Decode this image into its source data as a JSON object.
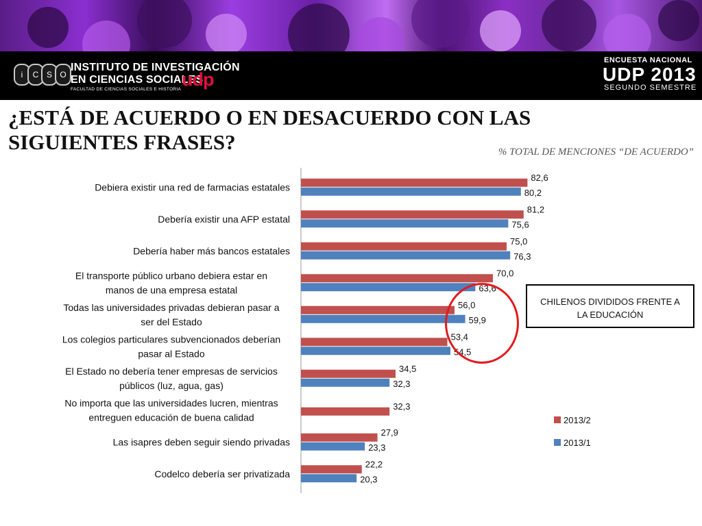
{
  "header": {
    "institute_line1": "INSTITUTO DE INVESTIGACIÓN",
    "institute_line2": "EN CIENCIAS SOCIALES",
    "institute_brand": "udp",
    "faculty": "FACULTAD DE CIENCIAS SOCIALES E HISTORIA",
    "logo_letters": [
      "i",
      "C",
      "S",
      "O"
    ],
    "survey_line1": "ENCUESTA NACIONAL",
    "survey_line2": "UDP 2013",
    "survey_line3": "SEGUNDO SEMESTRE"
  },
  "colors": {
    "series_2013_2": "#c0504d",
    "series_2013_1": "#4f81bd",
    "highlight": "#e3191b"
  },
  "callout": "CHILENOS DIVIDIDOS FRENTE A LA EDUCACIÓN",
  "chart_data": {
    "type": "bar",
    "orientation": "horizontal",
    "title": "¿ESTÁ DE ACUERDO O EN DESACUERDO CON LAS SIGUIENTES FRASES?",
    "subtitle": "% TOTAL DE MENCIONES  “DE ACUERDO”",
    "categories": [
      [
        "Debiera existir una red de farmacias estatales"
      ],
      [
        "Debería existir una AFP estatal"
      ],
      [
        "Debería haber más bancos estatales"
      ],
      [
        "El transporte público urbano debiera estar en",
        "manos de una empresa estatal"
      ],
      [
        "Todas las universidades privadas debieran pasar a",
        "ser del Estado"
      ],
      [
        "Los colegios particulares subvencionados deberían",
        "pasar al Estado"
      ],
      [
        "El Estado no debería tener empresas de servicios",
        "públicos (luz, agua, gas)"
      ],
      [
        "No importa que las universidades lucren, mientras",
        "entreguen educación de buena calidad"
      ],
      [
        "Las isapres deben seguir siendo privadas"
      ],
      [
        "Codelco debería ser privatizada"
      ]
    ],
    "series": [
      {
        "name": "2013/2",
        "values": [
          82.6,
          81.2,
          75.0,
          70.0,
          56.0,
          53.4,
          34.5,
          32.3,
          27.9,
          22.2
        ],
        "labels": [
          "82,6",
          "81,2",
          "75,0",
          "70,0",
          "56,0",
          "53,4",
          "34,5",
          "32,3",
          "27,9",
          "22,2"
        ]
      },
      {
        "name": "2013/1",
        "values": [
          80.2,
          75.6,
          76.3,
          63.6,
          59.9,
          54.5,
          32.3,
          null,
          23.3,
          20.3
        ],
        "labels": [
          "80,2",
          "75,6",
          "76,3",
          "63,6",
          "59,9",
          "54,5",
          "32,3",
          null,
          "23,3",
          "20,3"
        ]
      }
    ],
    "legend": [
      "2013/2",
      "2013/1"
    ],
    "legend_position": "right"
  }
}
